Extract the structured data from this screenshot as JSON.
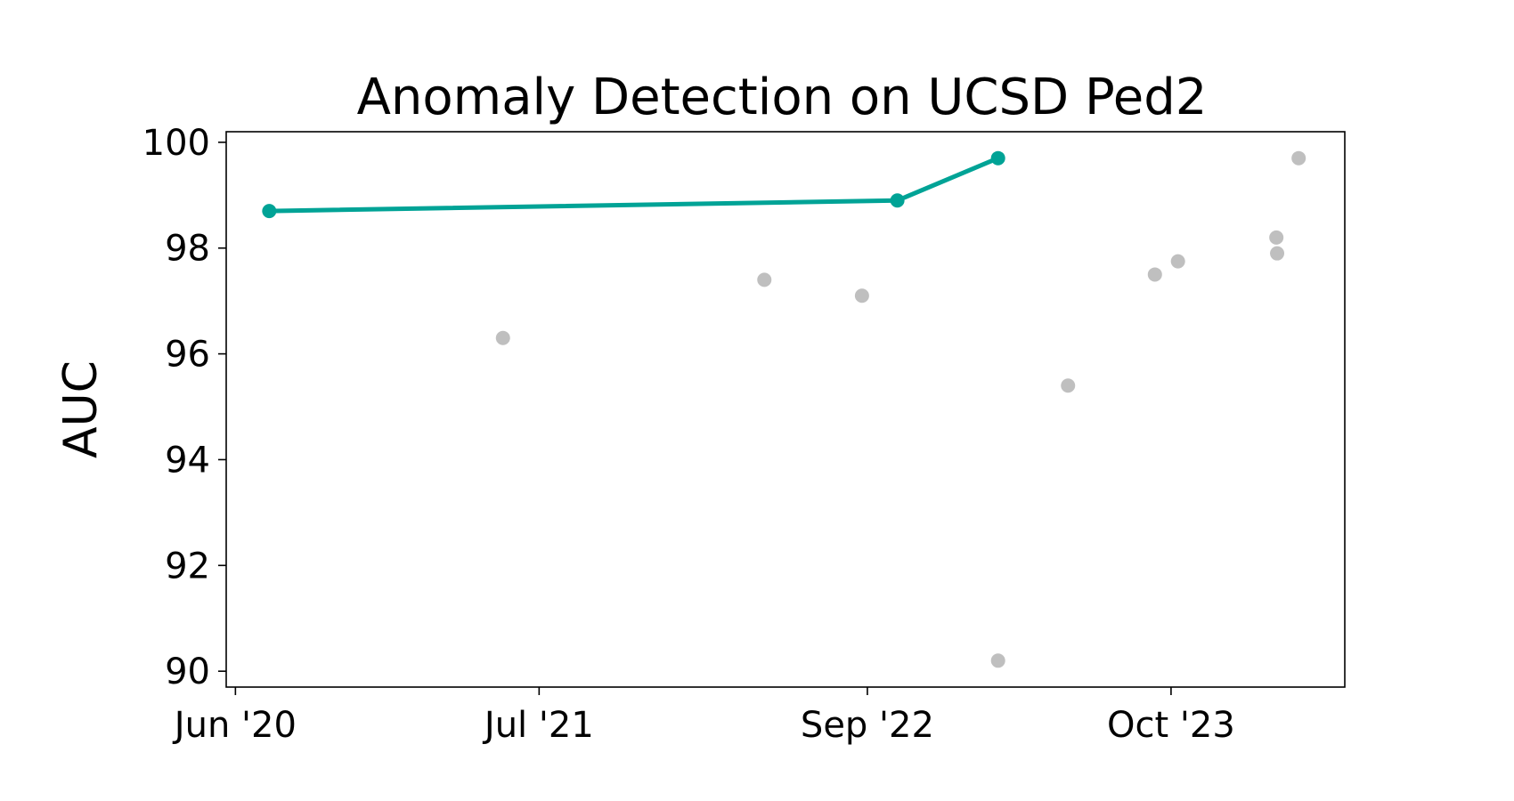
{
  "chart_data": {
    "type": "scatter",
    "title": "Anomaly Detection on UCSD Ped2",
    "xlabel": "",
    "ylabel": "AUC",
    "ylim": [
      89.7,
      100.2
    ],
    "xlim": [
      "2020-05-20",
      "2024-05-14"
    ],
    "x_ticks": [
      {
        "date": "2020-06-01",
        "label": "Jun '20"
      },
      {
        "date": "2021-07-01",
        "label": "Jul '21"
      },
      {
        "date": "2022-09-01",
        "label": "Sep '22"
      },
      {
        "date": "2023-10-01",
        "label": "Oct '23"
      }
    ],
    "y_ticks": [
      90,
      92,
      94,
      96,
      98,
      100
    ],
    "grid": false,
    "legend": "none",
    "series": [
      {
        "role": "state-of-the-art",
        "color": "#00a396",
        "style": "line-with-markers",
        "points": [
          {
            "x": "2020-07-15",
            "y": 98.7
          },
          {
            "x": "2022-10-10",
            "y": 98.9
          },
          {
            "x": "2023-02-18",
            "y": 99.7
          }
        ]
      },
      {
        "role": "other",
        "color": "#bfbfbf",
        "style": "markers",
        "points": [
          {
            "x": "2021-05-15",
            "y": 96.3
          },
          {
            "x": "2022-04-20",
            "y": 97.4
          },
          {
            "x": "2022-08-25",
            "y": 97.1
          },
          {
            "x": "2023-02-18",
            "y": 90.2
          },
          {
            "x": "2023-05-20",
            "y": 95.4
          },
          {
            "x": "2023-09-10",
            "y": 97.5
          },
          {
            "x": "2023-10-10",
            "y": 97.75
          },
          {
            "x": "2024-02-15",
            "y": 98.2
          },
          {
            "x": "2024-02-16",
            "y": 97.9
          },
          {
            "x": "2024-03-15",
            "y": 99.7
          }
        ]
      }
    ]
  }
}
